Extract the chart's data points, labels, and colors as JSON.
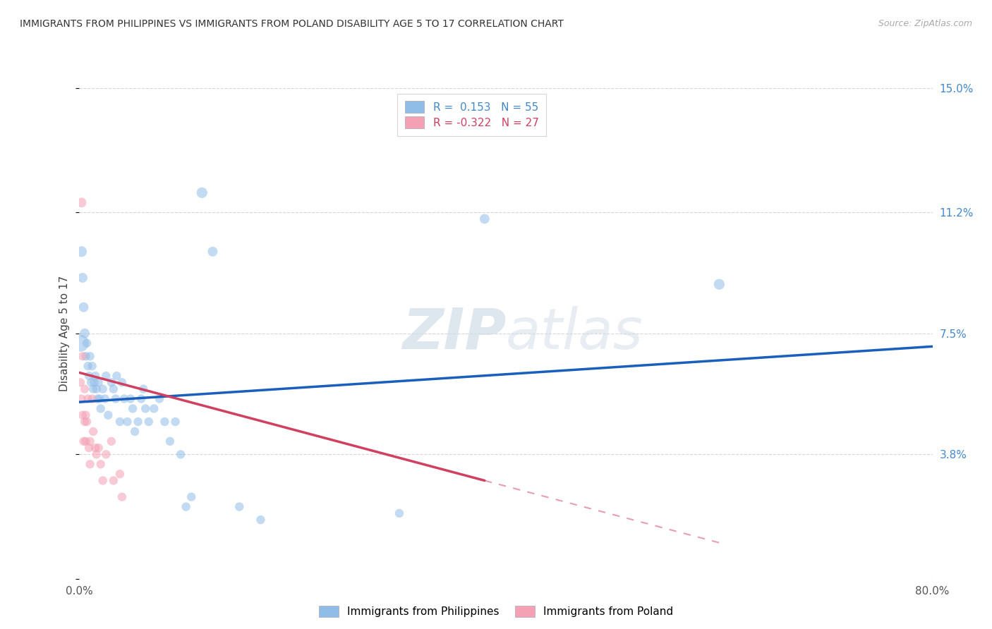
{
  "title": "IMMIGRANTS FROM PHILIPPINES VS IMMIGRANTS FROM POLAND DISABILITY AGE 5 TO 17 CORRELATION CHART",
  "source": "Source: ZipAtlas.com",
  "ylabel": "Disability Age 5 to 17",
  "xlim": [
    0.0,
    0.8
  ],
  "ylim": [
    0.0,
    0.15
  ],
  "yticks": [
    0.0,
    0.038,
    0.075,
    0.112,
    0.15
  ],
  "ytick_labels": [
    "",
    "3.8%",
    "7.5%",
    "11.2%",
    "15.0%"
  ],
  "xticks": [
    0.0,
    0.2,
    0.4,
    0.6,
    0.8
  ],
  "xtick_labels": [
    "0.0%",
    "",
    "",
    "",
    "80.0%"
  ],
  "grid_color": "#cccccc",
  "watermark_zip": "ZIP",
  "watermark_atlas": "atlas",
  "philippines_color": "#90bce8",
  "poland_color": "#f4a0b5",
  "philippines_line_color": "#1a5fbb",
  "poland_line_color": "#d04060",
  "philippines_R": 0.153,
  "philippines_N": 55,
  "poland_R": -0.322,
  "poland_N": 27,
  "philippines_points": [
    [
      0.001,
      0.072,
      300
    ],
    [
      0.002,
      0.1,
      120
    ],
    [
      0.003,
      0.092,
      100
    ],
    [
      0.004,
      0.083,
      100
    ],
    [
      0.005,
      0.075,
      100
    ],
    [
      0.006,
      0.068,
      80
    ],
    [
      0.007,
      0.072,
      80
    ],
    [
      0.008,
      0.065,
      80
    ],
    [
      0.009,
      0.062,
      80
    ],
    [
      0.01,
      0.068,
      80
    ],
    [
      0.011,
      0.06,
      80
    ],
    [
      0.012,
      0.065,
      80
    ],
    [
      0.013,
      0.058,
      80
    ],
    [
      0.014,
      0.06,
      80
    ],
    [
      0.015,
      0.062,
      80
    ],
    [
      0.016,
      0.058,
      80
    ],
    [
      0.017,
      0.055,
      80
    ],
    [
      0.018,
      0.06,
      80
    ],
    [
      0.019,
      0.055,
      80
    ],
    [
      0.02,
      0.052,
      80
    ],
    [
      0.022,
      0.058,
      80
    ],
    [
      0.024,
      0.055,
      80
    ],
    [
      0.025,
      0.062,
      80
    ],
    [
      0.027,
      0.05,
      80
    ],
    [
      0.03,
      0.06,
      80
    ],
    [
      0.032,
      0.058,
      80
    ],
    [
      0.034,
      0.055,
      80
    ],
    [
      0.035,
      0.062,
      80
    ],
    [
      0.038,
      0.048,
      80
    ],
    [
      0.04,
      0.06,
      80
    ],
    [
      0.042,
      0.055,
      80
    ],
    [
      0.045,
      0.048,
      80
    ],
    [
      0.048,
      0.055,
      80
    ],
    [
      0.05,
      0.052,
      80
    ],
    [
      0.052,
      0.045,
      80
    ],
    [
      0.055,
      0.048,
      80
    ],
    [
      0.058,
      0.055,
      80
    ],
    [
      0.06,
      0.058,
      80
    ],
    [
      0.062,
      0.052,
      80
    ],
    [
      0.065,
      0.048,
      80
    ],
    [
      0.07,
      0.052,
      80
    ],
    [
      0.075,
      0.055,
      80
    ],
    [
      0.08,
      0.048,
      80
    ],
    [
      0.085,
      0.042,
      80
    ],
    [
      0.09,
      0.048,
      80
    ],
    [
      0.095,
      0.038,
      80
    ],
    [
      0.1,
      0.022,
      80
    ],
    [
      0.105,
      0.025,
      80
    ],
    [
      0.115,
      0.118,
      120
    ],
    [
      0.125,
      0.1,
      100
    ],
    [
      0.15,
      0.022,
      80
    ],
    [
      0.17,
      0.018,
      80
    ],
    [
      0.3,
      0.02,
      80
    ],
    [
      0.6,
      0.09,
      120
    ],
    [
      0.38,
      0.11,
      100
    ]
  ],
  "poland_points": [
    [
      0.001,
      0.06,
      80
    ],
    [
      0.002,
      0.055,
      80
    ],
    [
      0.002,
      0.115,
      100
    ],
    [
      0.003,
      0.068,
      80
    ],
    [
      0.003,
      0.05,
      80
    ],
    [
      0.004,
      0.042,
      80
    ],
    [
      0.005,
      0.058,
      80
    ],
    [
      0.005,
      0.048,
      80
    ],
    [
      0.006,
      0.05,
      80
    ],
    [
      0.006,
      0.042,
      80
    ],
    [
      0.007,
      0.048,
      80
    ],
    [
      0.008,
      0.055,
      80
    ],
    [
      0.009,
      0.04,
      80
    ],
    [
      0.01,
      0.042,
      80
    ],
    [
      0.01,
      0.035,
      80
    ],
    [
      0.012,
      0.055,
      80
    ],
    [
      0.013,
      0.045,
      80
    ],
    [
      0.015,
      0.04,
      80
    ],
    [
      0.016,
      0.038,
      80
    ],
    [
      0.018,
      0.04,
      80
    ],
    [
      0.02,
      0.035,
      80
    ],
    [
      0.022,
      0.03,
      80
    ],
    [
      0.025,
      0.038,
      80
    ],
    [
      0.03,
      0.042,
      80
    ],
    [
      0.032,
      0.03,
      80
    ],
    [
      0.038,
      0.032,
      80
    ],
    [
      0.04,
      0.025,
      80
    ]
  ],
  "philippines_line": {
    "x0": 0.0,
    "y0": 0.054,
    "x1": 0.8,
    "y1": 0.071
  },
  "poland_line_solid": {
    "x0": 0.0,
    "y0": 0.063,
    "x1": 0.38,
    "y1": 0.03
  },
  "poland_line_dashed": {
    "x0": 0.38,
    "y0": 0.03,
    "x1": 0.6,
    "y1": 0.011
  }
}
